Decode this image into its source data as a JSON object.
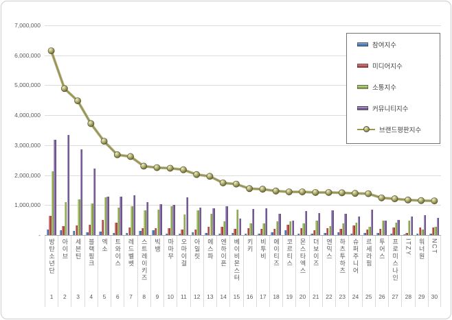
{
  "colors": {
    "grid": "#dcdcdc",
    "axis_line": "#a6a6a6",
    "axis_text": "#595959",
    "cell_border": "#d9d9d9",
    "card_border": "#cccccc",
    "background": "#ffffff"
  },
  "chart_data": {
    "type": "bar",
    "subtype": "grouped-bar-with-line-overlay",
    "title": "",
    "xlabel": "",
    "ylabel": "",
    "ylim": [
      0,
      7000000
    ],
    "ytick_interval": 1000000,
    "ytick_labels": [
      "-",
      "1,000,000",
      "2,000,000",
      "3,000,000",
      "4,000,000",
      "5,000,000",
      "6,000,000",
      "7,000,000"
    ],
    "grid": true,
    "legend_position": "top-right",
    "categories": [
      "방탄소년단",
      "아이브",
      "세븐틴",
      "블랙핑크",
      "엑소",
      "트와이스",
      "레드벨벳",
      "스트레이키즈",
      "빅뱅",
      "마마무",
      "오마이걸",
      "아일릿",
      "에스파",
      "엔하이픈",
      "베이비몬스터",
      "키키",
      "비투비",
      "에이티즈",
      "코르티스",
      "몬스타엑스",
      "더보이즈",
      "엔믹스",
      "하츠투하츠",
      "슈퍼주니어",
      "르세라핌",
      "투어스",
      "프로미스나인",
      "ITZY",
      "워너원",
      "NCT"
    ],
    "ranks": [
      1,
      2,
      3,
      4,
      5,
      6,
      7,
      8,
      9,
      10,
      11,
      12,
      13,
      14,
      15,
      16,
      17,
      18,
      19,
      20,
      21,
      22,
      23,
      24,
      25,
      26,
      27,
      28,
      29,
      30
    ],
    "series": [
      {
        "name": "참여지수",
        "key": "participation-index",
        "type": "bar",
        "color": "#4F81BD",
        "values": [
          180000,
          150000,
          130000,
          90000,
          110000,
          80000,
          70000,
          140000,
          150000,
          50000,
          50000,
          100000,
          80000,
          50000,
          80000,
          50000,
          50000,
          100000,
          160000,
          40000,
          40000,
          80000,
          100000,
          50000,
          60000,
          80000,
          40000,
          30000,
          50000,
          40000
        ]
      },
      {
        "name": "미디어지수",
        "key": "media-index",
        "type": "bar",
        "color": "#C0504D",
        "values": [
          650000,
          290000,
          320000,
          350000,
          500000,
          410000,
          260000,
          240000,
          230000,
          230000,
          190000,
          180000,
          270000,
          270000,
          210000,
          230000,
          200000,
          200000,
          340000,
          230000,
          160000,
          230000,
          210000,
          310000,
          190000,
          210000,
          250000,
          60000,
          260000,
          250000
        ]
      },
      {
        "name": "소통지수",
        "key": "communication-index",
        "type": "bar",
        "color": "#9BBB59",
        "values": [
          2130000,
          1100000,
          1180000,
          1050000,
          1250000,
          920000,
          960000,
          820000,
          840000,
          950000,
          680000,
          830000,
          710000,
          460000,
          850000,
          390000,
          390000,
          450000,
          460000,
          380000,
          490000,
          290000,
          380000,
          420000,
          280000,
          470000,
          420000,
          470000,
          180000,
          280000
        ]
      },
      {
        "name": "커뮤니티지수",
        "key": "community-index",
        "type": "bar",
        "color": "#8064A2",
        "values": [
          3190000,
          3350000,
          2850000,
          2230000,
          1270000,
          1270000,
          1330000,
          1100000,
          1030000,
          1000000,
          1260000,
          910000,
          900000,
          960000,
          560000,
          880000,
          890000,
          720000,
          480000,
          790000,
          730000,
          820000,
          720000,
          610000,
          850000,
          480000,
          500000,
          610000,
          660000,
          570000
        ]
      },
      {
        "name": "브랜드평판지수",
        "key": "brand-reputation-index",
        "type": "line",
        "color": "#98964F",
        "marker_color": "#B5B377",
        "values": [
          6150000,
          4890000,
          4480000,
          3720000,
          3130000,
          2680000,
          2620000,
          2300000,
          2250000,
          2230000,
          2180000,
          2020000,
          1960000,
          1740000,
          1700000,
          1550000,
          1530000,
          1470000,
          1440000,
          1440000,
          1420000,
          1420000,
          1410000,
          1390000,
          1380000,
          1240000,
          1210000,
          1170000,
          1150000,
          1140000
        ]
      }
    ]
  }
}
